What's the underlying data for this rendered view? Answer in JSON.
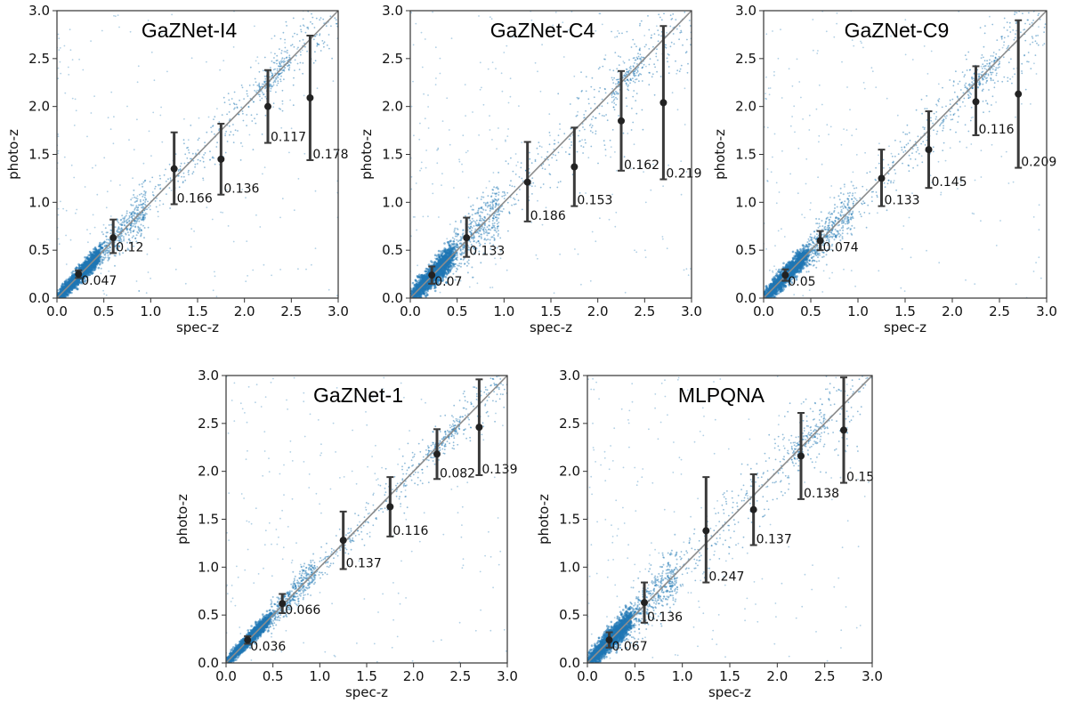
{
  "figure": {
    "description_free": true
  },
  "style": {
    "scatter_color": "#1f77b4",
    "errorbar_color": "#3a3a3a",
    "point_color": "#222222",
    "identity_line_color": "#8c8c8c",
    "axis_color": "#333333"
  },
  "chart_data": [
    {
      "type": "scatter",
      "title": "GaZNet-I4",
      "xlabel": "spec-z",
      "ylabel": "photo-z",
      "xlim": [
        0.0,
        3.0
      ],
      "ylim": [
        0.0,
        3.0
      ],
      "xticks": [
        "0.0",
        "0.5",
        "1.0",
        "1.5",
        "2.0",
        "2.5",
        "3.0"
      ],
      "yticks": [
        "0.0",
        "0.5",
        "1.0",
        "1.5",
        "2.0",
        "2.5",
        "3.0"
      ],
      "binned": {
        "x": [
          0.23,
          0.6,
          1.25,
          1.75,
          2.25,
          2.7
        ],
        "y": [
          0.25,
          0.63,
          1.35,
          1.45,
          2.0,
          2.09
        ],
        "err_low": [
          0.04,
          0.16,
          0.37,
          0.37,
          0.38,
          0.65
        ],
        "err_high": [
          0.04,
          0.19,
          0.38,
          0.37,
          0.38,
          0.65
        ],
        "sigma_labels": [
          "0.047",
          "0.12",
          "0.166",
          "0.136",
          "0.117",
          "0.178"
        ]
      },
      "scatter_scale": [
        1.0,
        1.0
      ]
    },
    {
      "type": "scatter",
      "title": "GaZNet-C4",
      "xlabel": "spec-z",
      "ylabel": "photo-z",
      "xlim": [
        0.0,
        3.0
      ],
      "ylim": [
        0.0,
        3.0
      ],
      "xticks": [
        "0.0",
        "0.5",
        "1.0",
        "1.5",
        "2.0",
        "2.5",
        "3.0"
      ],
      "yticks": [
        "0.0",
        "0.5",
        "1.0",
        "1.5",
        "2.0",
        "2.5",
        "3.0"
      ],
      "binned": {
        "x": [
          0.23,
          0.6,
          1.25,
          1.75,
          2.25,
          2.7
        ],
        "y": [
          0.24,
          0.63,
          1.21,
          1.37,
          1.85,
          2.04
        ],
        "err_low": [
          0.09,
          0.2,
          0.41,
          0.41,
          0.52,
          0.8
        ],
        "err_high": [
          0.09,
          0.21,
          0.42,
          0.41,
          0.52,
          0.8
        ],
        "sigma_labels": [
          "0.07",
          "0.133",
          "0.186",
          "0.153",
          "0.162",
          "0.219"
        ]
      },
      "scatter_scale": [
        1.4,
        1.4
      ]
    },
    {
      "type": "scatter",
      "title": "GaZNet-C9",
      "xlabel": "spec-z",
      "ylabel": "photo-z",
      "xlim": [
        0.0,
        3.0
      ],
      "ylim": [
        0.0,
        3.0
      ],
      "xticks": [
        "0.0",
        "0.5",
        "1.0",
        "1.5",
        "2.0",
        "2.5",
        "3.0"
      ],
      "yticks": [
        "0.0",
        "0.5",
        "1.0",
        "1.5",
        "2.0",
        "2.5",
        "3.0"
      ],
      "binned": {
        "x": [
          0.23,
          0.6,
          1.25,
          1.75,
          2.25,
          2.7
        ],
        "y": [
          0.24,
          0.6,
          1.25,
          1.55,
          2.05,
          2.13
        ],
        "err_low": [
          0.06,
          0.1,
          0.29,
          0.4,
          0.35,
          0.77
        ],
        "err_high": [
          0.06,
          0.1,
          0.3,
          0.4,
          0.37,
          0.77
        ],
        "sigma_labels": [
          "0.05",
          "0.074",
          "0.133",
          "0.145",
          "0.116",
          "0.209"
        ]
      },
      "scatter_scale": [
        1.1,
        1.1
      ]
    },
    {
      "type": "scatter",
      "title": "GaZNet-1",
      "xlabel": "spec-z",
      "ylabel": "photo-z",
      "xlim": [
        0.0,
        3.0
      ],
      "ylim": [
        0.0,
        3.0
      ],
      "xticks": [
        "0.0",
        "0.5",
        "1.0",
        "1.5",
        "2.0",
        "2.5",
        "3.0"
      ],
      "yticks": [
        "0.0",
        "0.5",
        "1.0",
        "1.5",
        "2.0",
        "2.5",
        "3.0"
      ],
      "binned": {
        "x": [
          0.23,
          0.6,
          1.25,
          1.75,
          2.25,
          2.7
        ],
        "y": [
          0.24,
          0.62,
          1.28,
          1.63,
          2.18,
          2.46
        ],
        "err_low": [
          0.04,
          0.1,
          0.3,
          0.31,
          0.26,
          0.5
        ],
        "err_high": [
          0.04,
          0.1,
          0.3,
          0.31,
          0.26,
          0.5
        ],
        "sigma_labels": [
          "0.036",
          "0.066",
          "0.137",
          "0.116",
          "0.082",
          "0.139"
        ]
      },
      "scatter_scale": [
        0.75,
        0.75
      ]
    },
    {
      "type": "scatter",
      "title": "MLPQNA",
      "xlabel": "spec-z",
      "ylabel": "photo-z",
      "xlim": [
        0.0,
        3.0
      ],
      "ylim": [
        0.0,
        3.0
      ],
      "xticks": [
        "0.0",
        "0.5",
        "1.0",
        "1.5",
        "2.0",
        "2.5",
        "3.0"
      ],
      "yticks": [
        "0.0",
        "0.5",
        "1.0",
        "1.5",
        "2.0",
        "2.5",
        "3.0"
      ],
      "binned": {
        "x": [
          0.23,
          0.6,
          1.25,
          1.75,
          2.25,
          2.7
        ],
        "y": [
          0.24,
          0.63,
          1.38,
          1.6,
          2.16,
          2.43
        ],
        "err_low": [
          0.08,
          0.21,
          0.54,
          0.37,
          0.45,
          0.55
        ],
        "err_high": [
          0.08,
          0.21,
          0.56,
          0.37,
          0.45,
          0.55
        ],
        "sigma_labels": [
          "0.067",
          "0.136",
          "0.247",
          "0.137",
          "0.138",
          "0.15"
        ]
      },
      "scatter_scale": [
        1.3,
        1.3
      ]
    }
  ]
}
